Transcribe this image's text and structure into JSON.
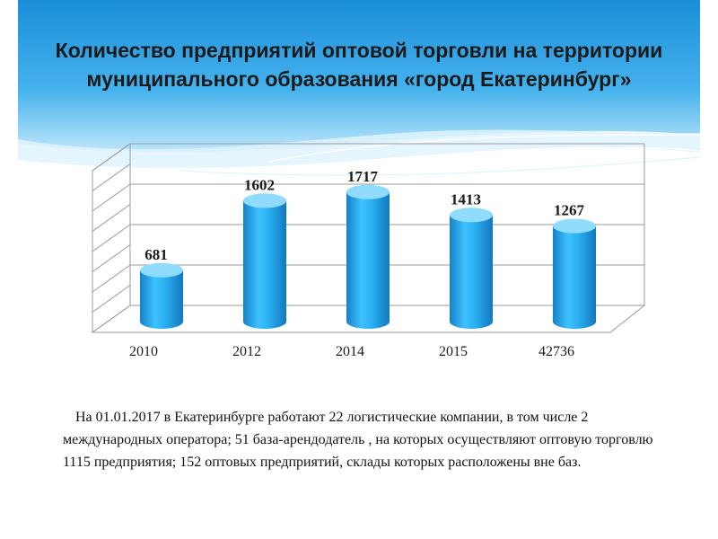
{
  "slide": {
    "title": "Количество предприятий оптовой торговли на территории муниципального образования «город Екатеринбург»",
    "note": "На 01.01.2017 в Екатеринбурге работают 22 логистические компании, в том числе 2 международных оператора; 51 база-арендодатель , на которых осуществляют оптовую торговлю 1115 предприятия; 152 оптовых предприятий, склады которых расположены вне баз."
  },
  "colors": {
    "bar": "#29a8ec",
    "bar_dark": "#1580c8",
    "bar_light": "#8fdcff",
    "banner": "#2b9be0"
  },
  "chart_data": {
    "type": "bar",
    "categories": [
      "2010",
      "2012",
      "2014",
      "2015",
      "42736"
    ],
    "values": [
      681,
      1602,
      1717,
      1413,
      1267
    ],
    "data_labels": [
      "681",
      "1602",
      "1717",
      "1413",
      "1267"
    ],
    "ylim": [
      0,
      2000
    ],
    "grid": true,
    "style": "3d-cylinder"
  }
}
